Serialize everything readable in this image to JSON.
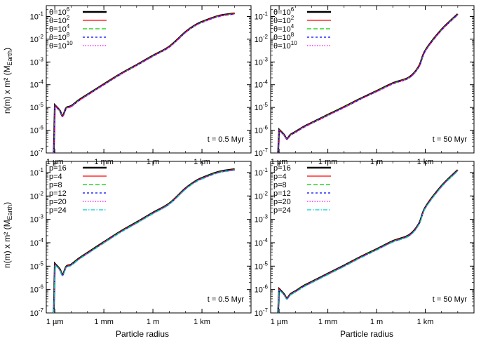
{
  "figure": {
    "ylabel": "n(m) x m² (M",
    "ylabel_sub": "Earth",
    "ylabel_close": ")",
    "xlabel": "Particle radius"
  },
  "chart_data": [
    {
      "type": "line",
      "panel": "top-left",
      "annotation": "t = 0.5 Myr",
      "xaxis": {
        "scale": "log",
        "unit": "m",
        "ticks": [
          {
            "value": 1e-06,
            "label": "1 µm"
          },
          {
            "value": 0.001,
            "label": "1 mm"
          },
          {
            "value": 1,
            "label": "1 m"
          },
          {
            "value": 1000.0,
            "label": "1 km"
          }
        ]
      },
      "yaxis": {
        "scale": "log",
        "range": [
          1e-07,
          0.3
        ],
        "ticks": [
          "10-7",
          "10-6",
          "10-5",
          "10-4",
          "10-3",
          "10-2",
          "10-1"
        ]
      },
      "legend_position": "top-left",
      "x": [
        1e-06,
        2e-06,
        3e-06,
        5e-06,
        1e-05,
        3e-05,
        0.0001,
        0.001,
        0.01,
        0.1,
        1,
        10,
        100,
        400,
        1000,
        10000.0,
        100000.0
      ],
      "series": [
        {
          "name": "θ=10^6",
          "base": "θ=10",
          "exp": "6",
          "color": "#000000",
          "dash": "",
          "width": 2.4
        },
        {
          "name": "θ=10^2",
          "base": "θ=10",
          "exp": "2",
          "color": "#ff0000",
          "dash": "",
          "width": 1.2
        },
        {
          "name": "θ=10^4",
          "base": "θ=10",
          "exp": "4",
          "color": "#00cc00",
          "dash": "6,3",
          "width": 1.2
        },
        {
          "name": "θ=10^8",
          "base": "θ=10",
          "exp": "8",
          "color": "#0000ff",
          "dash": "3,3",
          "width": 1.2
        },
        {
          "name": "θ=10^10",
          "base": "θ=10",
          "exp": "10",
          "color": "#ff00ff",
          "dash": "1.5,2",
          "width": 1.2
        }
      ],
      "values": [
        1.2e-05,
        7e-06,
        4e-06,
        9e-06,
        1.1e-05,
        2e-05,
        3.5e-05,
        0.0001,
        0.00028,
        0.0007,
        0.0018,
        0.0045,
        0.02,
        0.04,
        0.055,
        0.1,
        0.13
      ]
    },
    {
      "type": "line",
      "panel": "top-right",
      "annotation": "t = 50 Myr",
      "xaxis": {
        "scale": "log",
        "unit": "m",
        "ticks": [
          {
            "value": 1e-06,
            "label": "1 µm"
          },
          {
            "value": 0.001,
            "label": "1 mm"
          },
          {
            "value": 1,
            "label": "1 m"
          },
          {
            "value": 1000.0,
            "label": "1 km"
          }
        ]
      },
      "yaxis": {
        "scale": "log",
        "range": [
          1e-07,
          0.3
        ],
        "ticks": [
          "10-7",
          "10-6",
          "10-5",
          "10-4",
          "10-3",
          "10-2",
          "10-1"
        ]
      },
      "legend_position": "top-left",
      "x": [
        1e-06,
        2e-06,
        3e-06,
        5e-06,
        1e-05,
        3e-05,
        0.0001,
        0.001,
        0.01,
        0.1,
        1,
        10,
        100,
        400,
        1000,
        10000.0,
        100000.0
      ],
      "series": [
        {
          "name": "θ=10^6",
          "base": "θ=10",
          "exp": "6",
          "color": "#000000",
          "dash": "",
          "width": 2.4
        },
        {
          "name": "θ=10^2",
          "base": "θ=10",
          "exp": "2",
          "color": "#ff0000",
          "dash": "",
          "width": 1.2
        },
        {
          "name": "θ=10^4",
          "base": "θ=10",
          "exp": "4",
          "color": "#00cc00",
          "dash": "6,3",
          "width": 1.2
        },
        {
          "name": "θ=10^8",
          "base": "θ=10",
          "exp": "8",
          "color": "#0000ff",
          "dash": "3,3",
          "width": 1.2
        },
        {
          "name": "θ=10^10",
          "base": "θ=10",
          "exp": "10",
          "color": "#ff00ff",
          "dash": "1.5,2",
          "width": 1.2
        }
      ],
      "values": [
        1e-06,
        6e-07,
        4e-07,
        6e-07,
        8e-07,
        1.3e-06,
        2e-06,
        4.5e-06,
        1e-05,
        2.3e-05,
        5e-05,
        0.00011,
        0.0002,
        0.0006,
        0.003,
        0.025,
        0.12
      ]
    },
    {
      "type": "line",
      "panel": "bottom-left",
      "annotation": "t = 0.5 Myr",
      "xaxis": {
        "scale": "log",
        "unit": "m",
        "ticks": [
          {
            "value": 1e-06,
            "label": "1 µm"
          },
          {
            "value": 0.001,
            "label": "1 mm"
          },
          {
            "value": 1,
            "label": "1 m"
          },
          {
            "value": 1000.0,
            "label": "1 km"
          }
        ]
      },
      "yaxis": {
        "scale": "log",
        "range": [
          1e-07,
          0.3
        ],
        "ticks": [
          "10-7",
          "10-6",
          "10-5",
          "10-4",
          "10-3",
          "10-2",
          "10-1"
        ]
      },
      "legend_position": "top-left",
      "x": [
        1e-06,
        2e-06,
        3e-06,
        5e-06,
        1e-05,
        3e-05,
        0.0001,
        0.001,
        0.01,
        0.1,
        1,
        10,
        100,
        400,
        1000,
        10000.0,
        100000.0
      ],
      "series": [
        {
          "name": "p=16",
          "color": "#000000",
          "dash": "",
          "width": 2.4
        },
        {
          "name": "p=4",
          "color": "#ff0000",
          "dash": "",
          "width": 1.2
        },
        {
          "name": "p=8",
          "color": "#00cc00",
          "dash": "6,3",
          "width": 1.2
        },
        {
          "name": "p=12",
          "color": "#0000ff",
          "dash": "3,3",
          "width": 1.2
        },
        {
          "name": "p=20",
          "color": "#ff00ff",
          "dash": "1.5,2",
          "width": 1.2
        },
        {
          "name": "p=24",
          "color": "#00cccc",
          "dash": "6,2,1.5,2",
          "width": 1.2
        }
      ],
      "values": [
        1.2e-05,
        7e-06,
        4e-06,
        9e-06,
        1.1e-05,
        2e-05,
        3.5e-05,
        0.0001,
        0.00028,
        0.0007,
        0.0018,
        0.0045,
        0.02,
        0.04,
        0.055,
        0.1,
        0.13
      ]
    },
    {
      "type": "line",
      "panel": "bottom-right",
      "annotation": "t = 50 Myr",
      "xaxis": {
        "scale": "log",
        "unit": "m",
        "ticks": [
          {
            "value": 1e-06,
            "label": "1 µm"
          },
          {
            "value": 0.001,
            "label": "1 mm"
          },
          {
            "value": 1,
            "label": "1 m"
          },
          {
            "value": 1000.0,
            "label": "1 km"
          }
        ]
      },
      "yaxis": {
        "scale": "log",
        "range": [
          1e-07,
          0.3
        ],
        "ticks": [
          "10-7",
          "10-6",
          "10-5",
          "10-4",
          "10-3",
          "10-2",
          "10-1"
        ]
      },
      "legend_position": "top-left",
      "x": [
        1e-06,
        2e-06,
        3e-06,
        5e-06,
        1e-05,
        3e-05,
        0.0001,
        0.001,
        0.01,
        0.1,
        1,
        10,
        100,
        400,
        1000,
        10000.0,
        100000.0
      ],
      "series": [
        {
          "name": "p=16",
          "color": "#000000",
          "dash": "",
          "width": 2.4
        },
        {
          "name": "p=4",
          "color": "#ff0000",
          "dash": "",
          "width": 1.2
        },
        {
          "name": "p=8",
          "color": "#00cc00",
          "dash": "6,3",
          "width": 1.2
        },
        {
          "name": "p=12",
          "color": "#0000ff",
          "dash": "3,3",
          "width": 1.2
        },
        {
          "name": "p=20",
          "color": "#ff00ff",
          "dash": "1.5,2",
          "width": 1.2
        },
        {
          "name": "p=24",
          "color": "#00cccc",
          "dash": "6,2,1.5,2",
          "width": 1.2
        }
      ],
      "values": [
        1e-06,
        6e-07,
        4e-07,
        6e-07,
        8e-07,
        1.3e-06,
        2e-06,
        4.5e-06,
        1e-05,
        2.3e-05,
        5e-05,
        0.00011,
        0.0002,
        0.0006,
        0.003,
        0.025,
        0.12
      ]
    }
  ]
}
